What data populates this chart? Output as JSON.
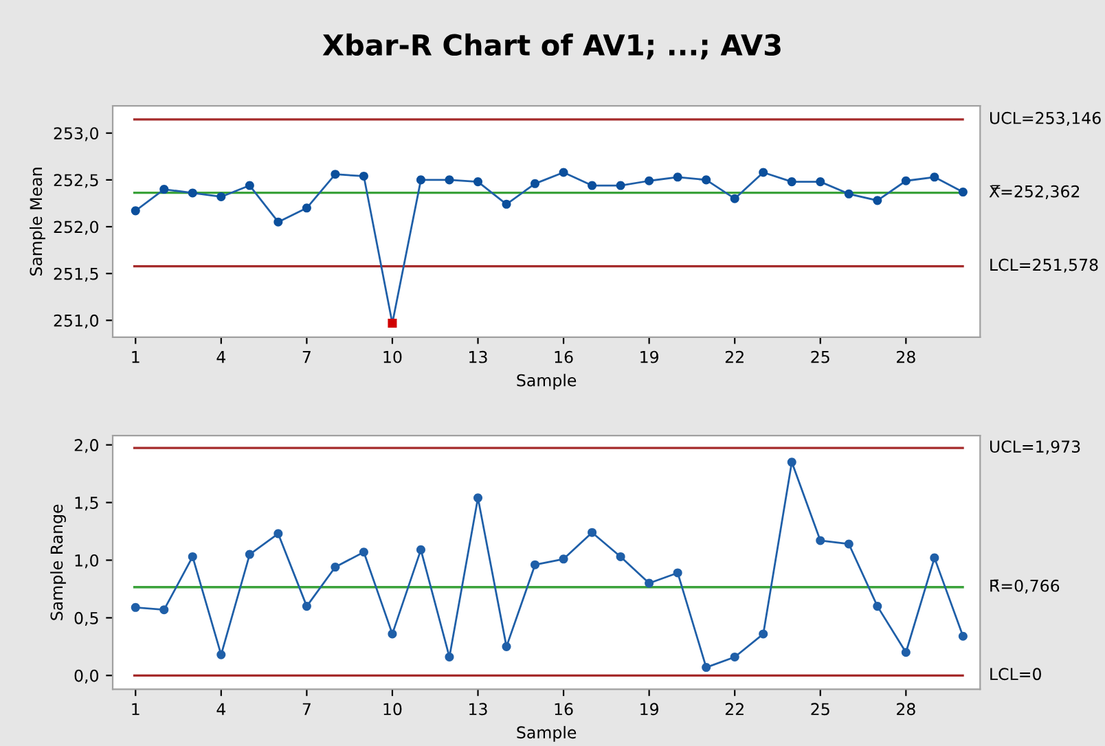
{
  "chart_data": [
    {
      "type": "line",
      "title": "Xbar-R Chart of AV1; ...; AV3",
      "xlabel": "Sample",
      "ylabel": "Sample Mean",
      "marker": "circle",
      "grid": false,
      "legend": false,
      "x": [
        1,
        2,
        3,
        4,
        5,
        6,
        7,
        8,
        9,
        10,
        11,
        12,
        13,
        14,
        15,
        16,
        17,
        18,
        19,
        20,
        21,
        22,
        23,
        24,
        25,
        26,
        27,
        28,
        29,
        30
      ],
      "series": [
        {
          "color": "#1f5fa8",
          "colors": [
            "#0b4f9c",
            "#0b4f9c",
            "#0b4f9c",
            "#0b4f9c",
            "#0b4f9c",
            "#0b4f9c",
            "#0b4f9c",
            "#0b4f9c",
            "#0b4f9c",
            "#d00000",
            "#0b4f9c",
            "#0b4f9c",
            "#0b4f9c",
            "#0b4f9c",
            "#0b4f9c",
            "#0b4f9c",
            "#0b4f9c",
            "#0b4f9c",
            "#0b4f9c",
            "#0b4f9c",
            "#0b4f9c",
            "#0b4f9c",
            "#0b4f9c",
            "#0b4f9c",
            "#0b4f9c",
            "#0b4f9c",
            "#0b4f9c",
            "#0b4f9c",
            "#0b4f9c",
            "#0b4f9c"
          ],
          "values": [
            252.17,
            252.4,
            252.36,
            252.32,
            252.44,
            252.05,
            252.2,
            252.56,
            252.54,
            250.97,
            252.5,
            252.5,
            252.48,
            252.24,
            252.46,
            252.58,
            252.44,
            252.44,
            252.49,
            252.53,
            252.5,
            252.3,
            252.58,
            252.48,
            252.48,
            252.35,
            252.28,
            252.49,
            252.53,
            252.37
          ]
        }
      ],
      "xlim": [
        0.2,
        30.6
      ],
      "xticks": [
        1,
        4,
        7,
        10,
        13,
        16,
        19,
        22,
        25,
        28
      ],
      "ylim": [
        250.82,
        253.29
      ],
      "yticks": [
        {
          "value": 251.0,
          "label": "251,0"
        },
        {
          "value": 251.5,
          "label": "251,5"
        },
        {
          "value": 252.0,
          "label": "252,0"
        },
        {
          "value": 252.5,
          "label": "252,5"
        },
        {
          "value": 253.0,
          "label": "253,0"
        }
      ],
      "ref_lines": [
        {
          "axis": "y",
          "value": 253.146,
          "label": "UCL=253,146",
          "color": "#a52a2a"
        },
        {
          "axis": "y",
          "value": 252.362,
          "label": "X̿=252,362",
          "color": "#3aa23a"
        },
        {
          "axis": "y",
          "value": 251.578,
          "label": "LCL=251,578",
          "color": "#a52a2a"
        }
      ]
    },
    {
      "type": "line",
      "xlabel": "Sample",
      "ylabel": "Sample Range",
      "marker": "circle",
      "grid": false,
      "legend": false,
      "x": [
        1,
        2,
        3,
        4,
        5,
        6,
        7,
        8,
        9,
        10,
        11,
        12,
        13,
        14,
        15,
        16,
        17,
        18,
        19,
        20,
        21,
        22,
        23,
        24,
        25,
        26,
        27,
        28,
        29,
        30
      ],
      "series": [
        {
          "color": "#1f5fa8",
          "values": [
            0.59,
            0.57,
            1.03,
            0.18,
            1.05,
            1.23,
            0.6,
            0.94,
            1.07,
            0.36,
            1.09,
            0.16,
            1.54,
            0.25,
            0.96,
            1.01,
            1.24,
            1.03,
            0.8,
            0.89,
            0.07,
            0.16,
            0.36,
            1.85,
            1.17,
            1.14,
            0.6,
            0.2,
            1.02,
            0.34
          ]
        }
      ],
      "xlim": [
        0.2,
        30.6
      ],
      "xticks": [
        1,
        4,
        7,
        10,
        13,
        16,
        19,
        22,
        25,
        28
      ],
      "ylim": [
        -0.12,
        2.08
      ],
      "yticks": [
        {
          "value": 0.0,
          "label": "0,0"
        },
        {
          "value": 0.5,
          "label": "0,5"
        },
        {
          "value": 1.0,
          "label": "1,0"
        },
        {
          "value": 1.5,
          "label": "1,5"
        },
        {
          "value": 2.0,
          "label": "2,0"
        }
      ],
      "ref_lines": [
        {
          "axis": "y",
          "value": 1.973,
          "label": "UCL=1,973",
          "color": "#a52a2a"
        },
        {
          "axis": "y",
          "value": 0.766,
          "label": "R̄=0,766",
          "color": "#3aa23a"
        },
        {
          "axis": "y",
          "value": 0,
          "label": "LCL=0",
          "color": "#a52a2a"
        }
      ]
    }
  ]
}
